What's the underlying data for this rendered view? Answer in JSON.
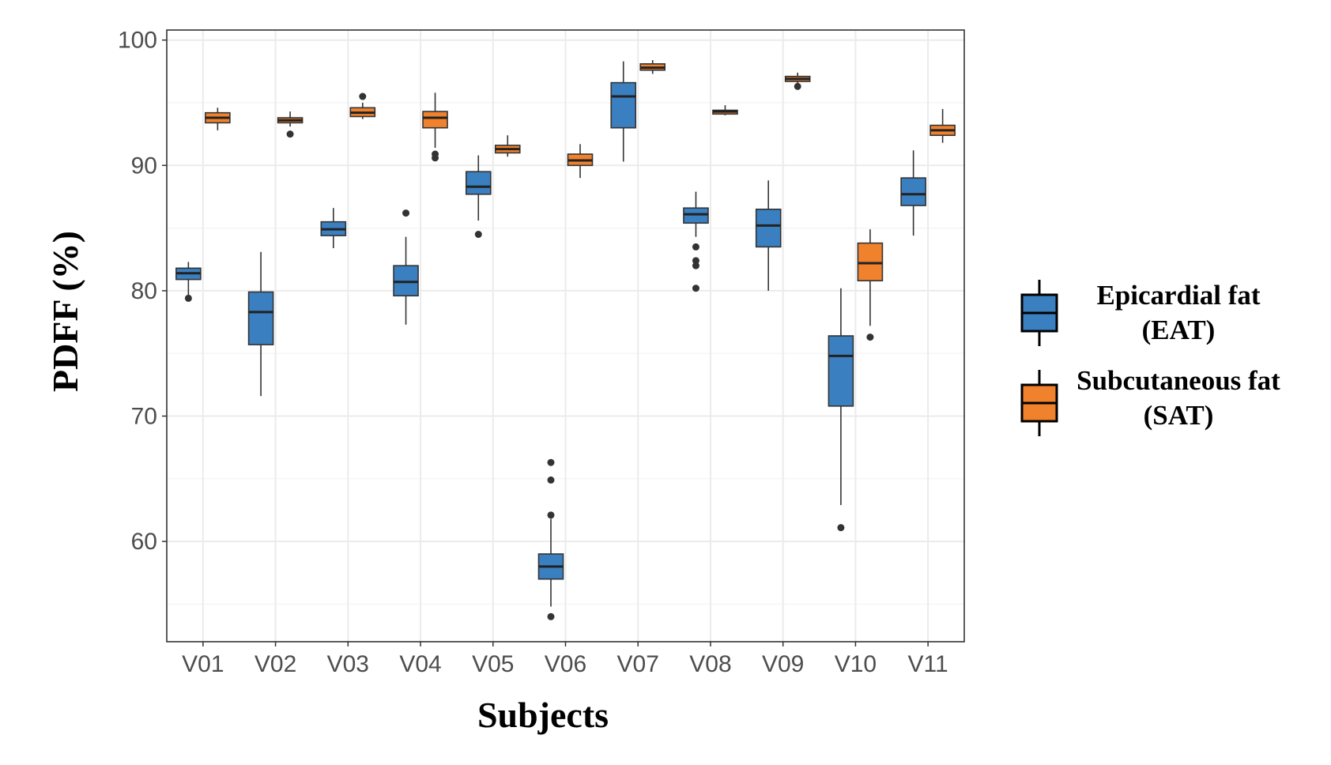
{
  "chart_data": {
    "type": "boxplot",
    "xlabel": "Subjects",
    "ylabel": "PDFF (%)",
    "categories": [
      "V01",
      "V02",
      "V03",
      "V04",
      "V05",
      "V06",
      "V07",
      "V08",
      "V09",
      "V10",
      "V11"
    ],
    "yticks": [
      60,
      70,
      80,
      90,
      100
    ],
    "ylim": [
      52,
      100.8
    ],
    "grid": true,
    "legend_position": "right",
    "series": [
      {
        "key": "EAT",
        "legend_label_line1": "Epicardial fat",
        "legend_label_line2": "(EAT)",
        "color": "#3a7fc0",
        "boxes": [
          {
            "whisker_low": 79.6,
            "q1": 80.9,
            "median": 81.4,
            "q3": 81.8,
            "whisker_high": 82.3,
            "outliers": [
              79.4
            ]
          },
          {
            "whisker_low": 71.6,
            "q1": 75.7,
            "median": 78.3,
            "q3": 79.9,
            "whisker_high": 83.1,
            "outliers": []
          },
          {
            "whisker_low": 83.4,
            "q1": 84.4,
            "median": 84.9,
            "q3": 85.5,
            "whisker_high": 86.6,
            "outliers": []
          },
          {
            "whisker_low": 77.3,
            "q1": 79.6,
            "median": 80.7,
            "q3": 82.0,
            "whisker_high": 84.3,
            "outliers": [
              86.2
            ]
          },
          {
            "whisker_low": 85.6,
            "q1": 87.7,
            "median": 88.3,
            "q3": 89.5,
            "whisker_high": 90.8,
            "outliers": [
              84.5
            ]
          },
          {
            "whisker_low": 54.8,
            "q1": 57.0,
            "median": 58.0,
            "q3": 59.0,
            "whisker_high": 61.8,
            "outliers": [
              54.0,
              62.1,
              64.9,
              66.3
            ]
          },
          {
            "whisker_low": 90.3,
            "q1": 93.0,
            "median": 95.5,
            "q3": 96.6,
            "whisker_high": 98.3,
            "outliers": []
          },
          {
            "whisker_low": 84.3,
            "q1": 85.4,
            "median": 86.1,
            "q3": 86.6,
            "whisker_high": 87.9,
            "outliers": [
              83.5,
              82.4,
              82.0,
              80.2
            ]
          },
          {
            "whisker_low": 80.0,
            "q1": 83.5,
            "median": 85.2,
            "q3": 86.5,
            "whisker_high": 88.8,
            "outliers": []
          },
          {
            "whisker_low": 62.9,
            "q1": 70.8,
            "median": 74.8,
            "q3": 76.4,
            "whisker_high": 80.2,
            "outliers": [
              61.1
            ]
          },
          {
            "whisker_low": 84.4,
            "q1": 86.8,
            "median": 87.7,
            "q3": 89.0,
            "whisker_high": 91.2,
            "outliers": []
          }
        ]
      },
      {
        "key": "SAT",
        "legend_label_line1": "Subcutaneous fat",
        "legend_label_line2": "(SAT)",
        "color": "#f0822d",
        "boxes": [
          {
            "whisker_low": 92.8,
            "q1": 93.4,
            "median": 93.8,
            "q3": 94.2,
            "whisker_high": 94.6,
            "outliers": []
          },
          {
            "whisker_low": 93.1,
            "q1": 93.4,
            "median": 93.6,
            "q3": 93.8,
            "whisker_high": 94.3,
            "outliers": [
              92.5
            ]
          },
          {
            "whisker_low": 93.7,
            "q1": 93.9,
            "median": 94.2,
            "q3": 94.6,
            "whisker_high": 95.0,
            "outliers": [
              95.5
            ]
          },
          {
            "whisker_low": 91.4,
            "q1": 93.0,
            "median": 93.8,
            "q3": 94.3,
            "whisker_high": 95.8,
            "outliers": [
              90.9,
              90.6
            ]
          },
          {
            "whisker_low": 90.7,
            "q1": 91.0,
            "median": 91.3,
            "q3": 91.6,
            "whisker_high": 92.4,
            "outliers": []
          },
          {
            "whisker_low": 89.0,
            "q1": 90.0,
            "median": 90.4,
            "q3": 90.9,
            "whisker_high": 91.7,
            "outliers": []
          },
          {
            "whisker_low": 97.3,
            "q1": 97.6,
            "median": 97.8,
            "q3": 98.1,
            "whisker_high": 98.4,
            "outliers": []
          },
          {
            "whisker_low": 94.0,
            "q1": 94.1,
            "median": 94.3,
            "q3": 94.4,
            "whisker_high": 94.8,
            "outliers": []
          },
          {
            "whisker_low": 96.5,
            "q1": 96.7,
            "median": 96.9,
            "q3": 97.1,
            "whisker_high": 97.4,
            "outliers": [
              96.3
            ]
          },
          {
            "whisker_low": 77.2,
            "q1": 80.8,
            "median": 82.2,
            "q3": 83.8,
            "whisker_high": 84.9,
            "outliers": [
              76.3
            ]
          },
          {
            "whisker_low": 91.8,
            "q1": 92.4,
            "median": 92.8,
            "q3": 93.2,
            "whisker_high": 94.5,
            "outliers": []
          }
        ]
      }
    ]
  }
}
